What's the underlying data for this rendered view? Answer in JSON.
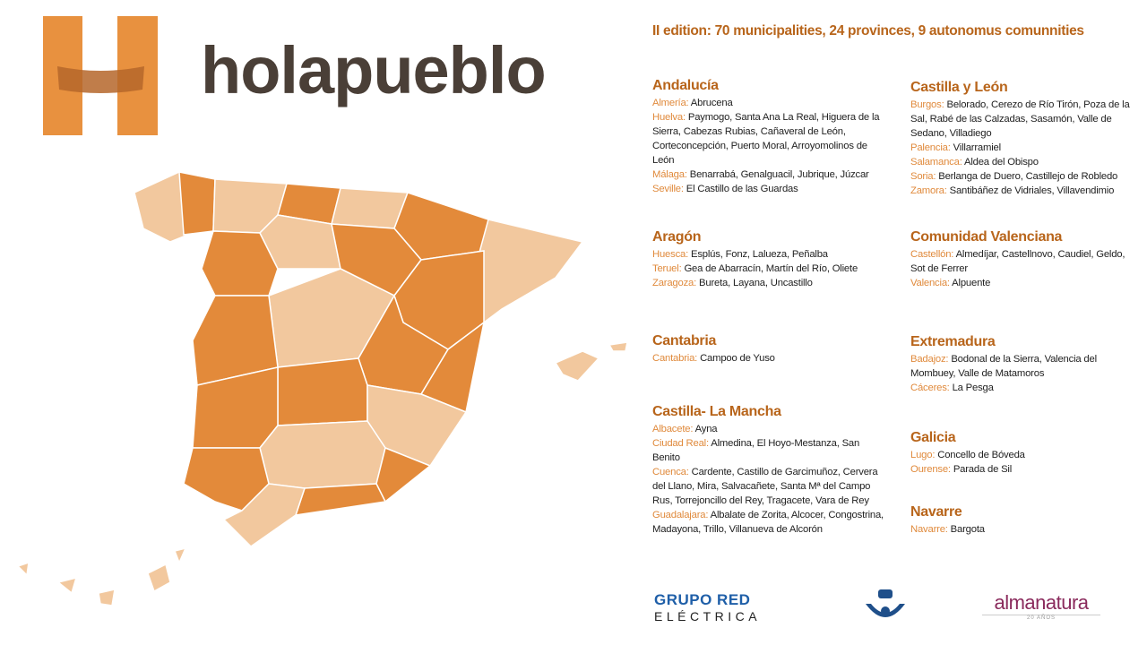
{
  "brand": "holapueblo",
  "headline": "II edition: 70 municipalities, 24 provinces, 9 autonomus comunnities",
  "columns": [
    [
      {
        "name": "Andalucía",
        "provinces": [
          {
            "name": "Almería:",
            "places": "Abrucena"
          },
          {
            "name": "Huelva:",
            "places": "Paymogo, Santa Ana La Real, Higuera de la Sierra, Cabezas Rubias, Cañaveral de León, Corteconcepción, Puerto Moral, Arroyomolinos de León"
          },
          {
            "name": "Málaga:",
            "places": "Benarrabá, Genalguacil, Jubrique, Júzcar"
          },
          {
            "name": "Seville:",
            "places": "El Castillo de las Guardas"
          }
        ]
      },
      {
        "name": "Aragón",
        "provinces": [
          {
            "name": "Huesca:",
            "places": "Esplús, Fonz, Lalueza, Peñalba"
          },
          {
            "name": "Teruel:",
            "places": "Gea de Abarracín, Martín del Río, Oliete"
          },
          {
            "name": "Zaragoza:",
            "places": "Bureta, Layana, Uncastillo"
          }
        ]
      },
      {
        "name": "Cantabria",
        "provinces": [
          {
            "name": "Cantabria:",
            "places": "Campoo de Yuso"
          }
        ]
      },
      {
        "name": "Castilla- La Mancha",
        "provinces": [
          {
            "name": "Albacete:",
            "places": "Ayna"
          },
          {
            "name": "Ciudad Real:",
            "places": "Almedina, El Hoyo-Mestanza, San Benito"
          },
          {
            "name": "Cuenca:",
            "places": "Cardente, Castillo de Garcimuñoz, Cervera del Llano, Mira, Salvacañete, Santa Mª del Campo Rus, Torrejoncillo del Rey, Tragacete, Vara de Rey"
          },
          {
            "name": "Guadalajara:",
            "places": "Albalate de Zorita, Alcocer, Congostrina, Madayona, Trillo, Villanueva de Alcorón"
          }
        ]
      }
    ],
    [
      {
        "name": "Castilla y León",
        "provinces": [
          {
            "name": "Burgos:",
            "places": "Belorado, Cerezo de Río Tirón, Poza de la Sal, Rabé de las Calzadas, Sasamón, Valle de Sedano, Villadiego"
          },
          {
            "name": "Palencia:",
            "places": "Villarramiel"
          },
          {
            "name": "Salamanca:",
            "places": "Aldea del Obispo"
          },
          {
            "name": "Soria:",
            "places": "Berlanga de Duero, Castillejo de Robledo"
          },
          {
            "name": "Zamora:",
            "places": "Santibáñez de Vidriales, Villavendimio"
          }
        ]
      },
      {
        "name": "Comunidad Valenciana",
        "provinces": [
          {
            "name": "Castellón:",
            "places": "Almedíjar, Castellnovo, Caudiel, Geldo, Sot de Ferrer"
          },
          {
            "name": "Valencia:",
            "places": "Alpuente"
          }
        ]
      },
      {
        "name": "Extremadura",
        "provinces": [
          {
            "name": "Badajoz:",
            "places": "Bodonal de la Sierra, Valencia del Mombuey, Valle de Matamoros"
          },
          {
            "name": "Cáceres:",
            "places": "La Pesga"
          }
        ]
      },
      {
        "name": "Galicia",
        "provinces": [
          {
            "name": "Lugo:",
            "places": "Concello de Bóveda"
          },
          {
            "name": "Ourense:",
            "places": "Parada de Sil"
          }
        ]
      },
      {
        "name": "Navarre",
        "provinces": [
          {
            "name": "Navarre:",
            "places": "Bargota"
          }
        ]
      }
    ]
  ],
  "sponsors": {
    "ree_top": "GRUPO RED",
    "ree_bottom": "ELÉCTRICA",
    "almanatura": "almanatura",
    "almanatura_sub": "20 AÑOS"
  }
}
